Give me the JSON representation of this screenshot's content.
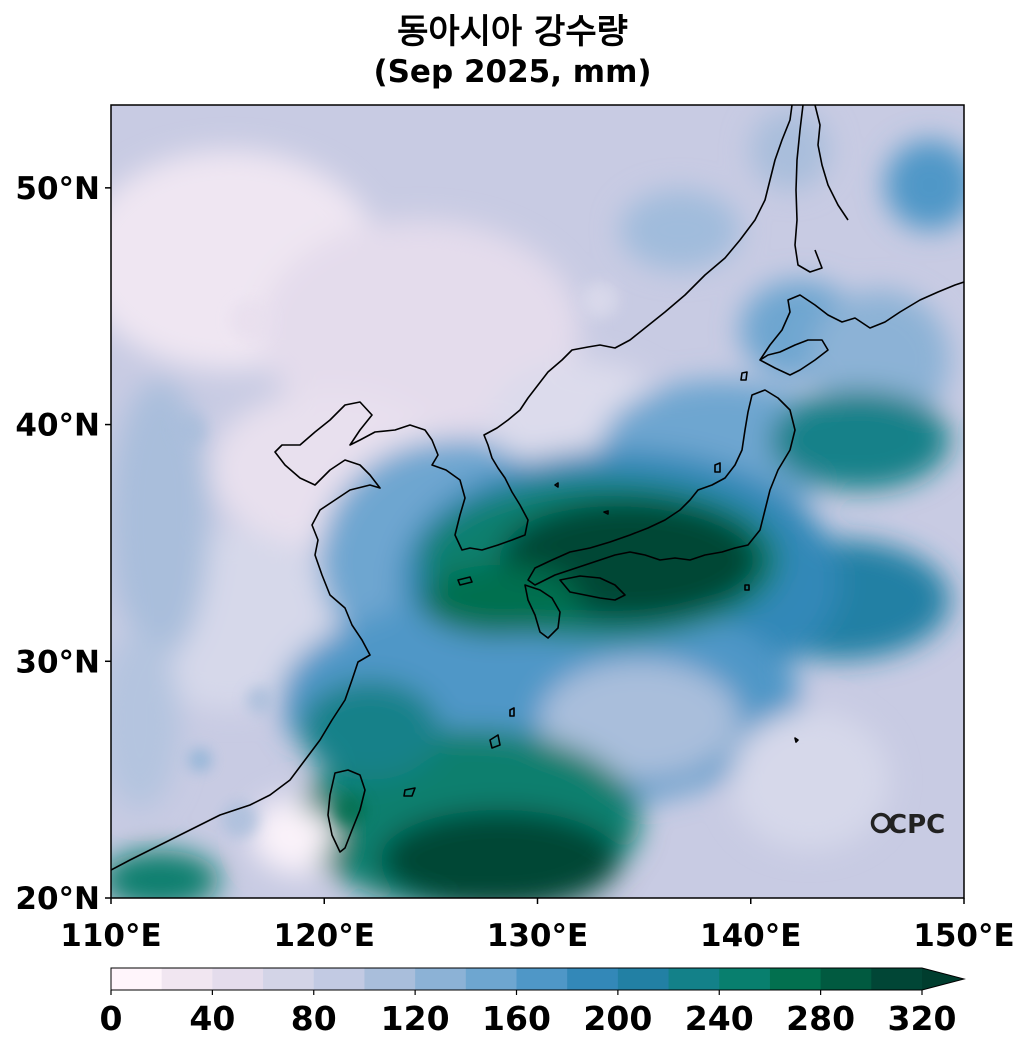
{
  "title": "동아시아 강수량",
  "subtitle": "(Sep 2025, mm)",
  "map": {
    "lon_range": [
      110,
      150
    ],
    "lat_range": [
      20,
      53.5
    ],
    "lon_ticks": [
      "110°E",
      "120°E",
      "130°E",
      "140°E",
      "150°E"
    ],
    "lat_ticks": [
      "20°N",
      "30°N",
      "40°N",
      "50°N"
    ]
  },
  "colorbar": {
    "min": 0,
    "max": 320,
    "step": 20,
    "extend": "max",
    "tick_labels": [
      "0",
      "40",
      "80",
      "120",
      "160",
      "200",
      "240",
      "280",
      "320"
    ],
    "colors": [
      "#fff5fb",
      "#f1e6f1",
      "#e4dcec",
      "#d3d4e7",
      "#c2cae3",
      "#a9bedb",
      "#8cb2d6",
      "#6ea6d0",
      "#4f97c7",
      "#3388b8",
      "#2280a4",
      "#138189",
      "#087f6e",
      "#02704f",
      "#015a40",
      "#014636",
      "#003d2e"
    ]
  },
  "logo": "CPC"
}
